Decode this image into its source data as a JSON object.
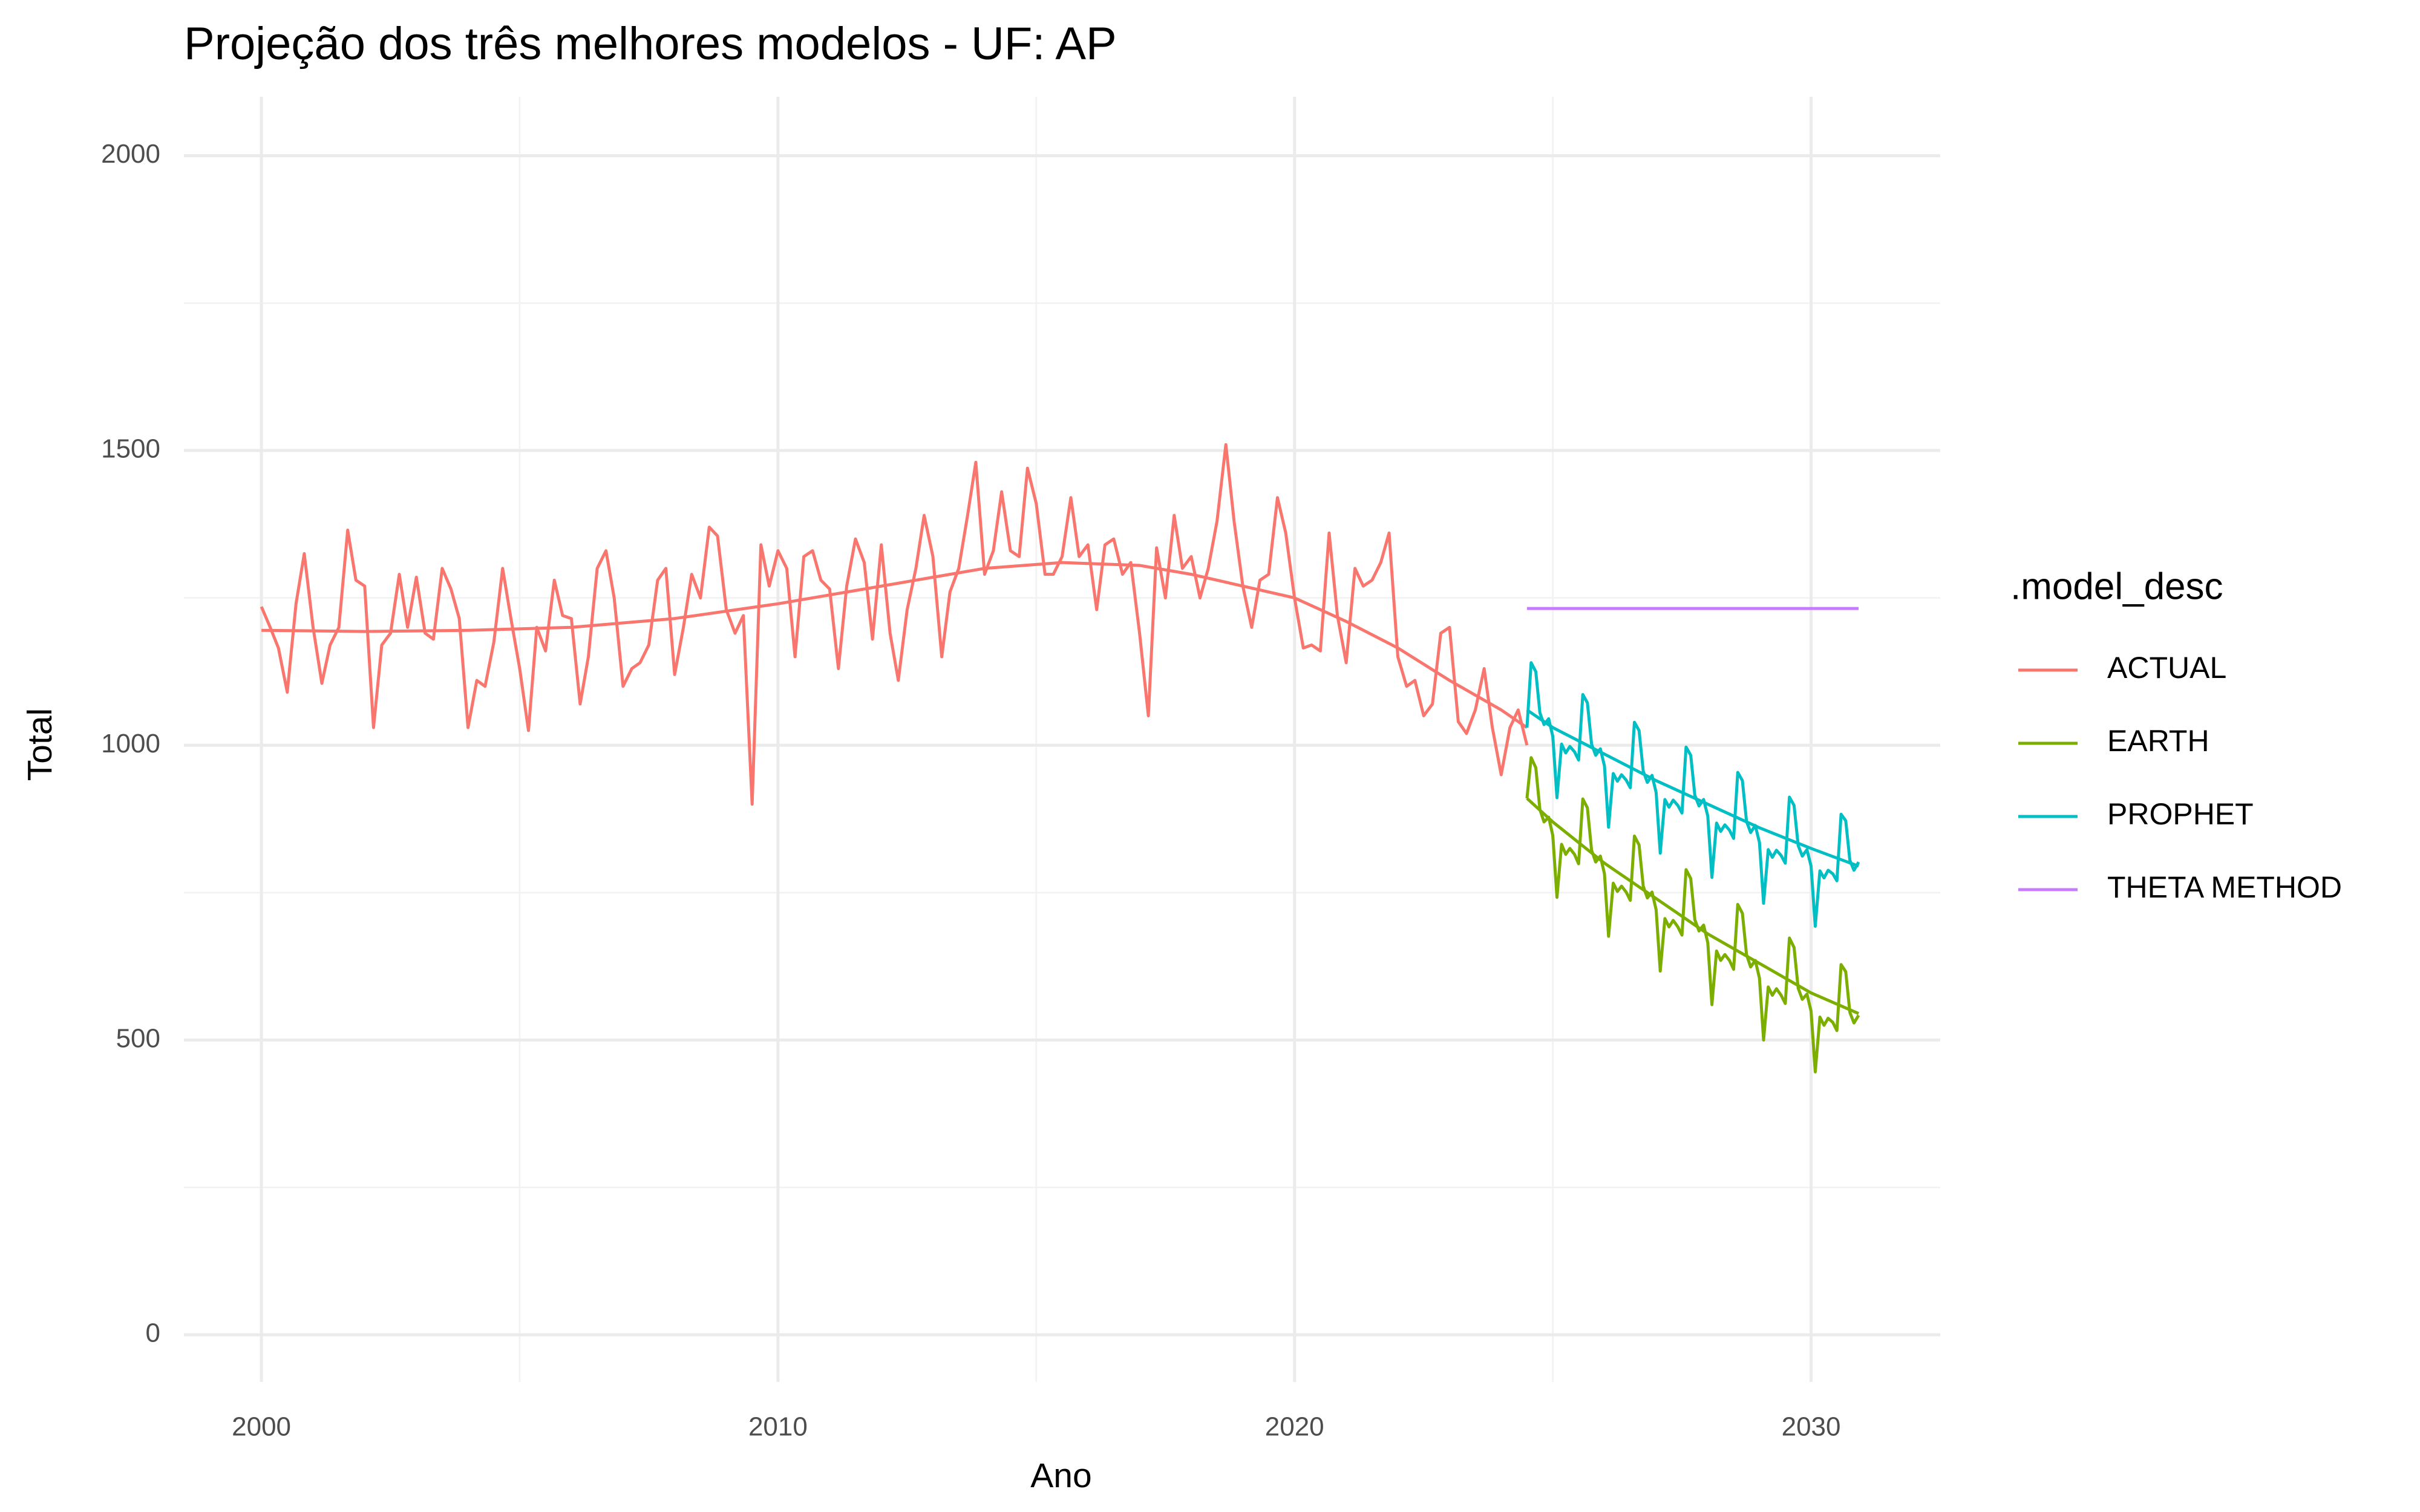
{
  "chart_data": {
    "type": "line",
    "title": "Projeção dos três melhores modelos - UF: AP",
    "xlabel": "Ano",
    "ylabel": "Total",
    "legend_title": ".model_desc",
    "legend": "right",
    "grid": true,
    "xlim": [
      1998.5,
      2032.5
    ],
    "ylim": [
      -80,
      2100
    ],
    "xticks": [
      2000,
      2010,
      2020,
      2030
    ],
    "yticks": [
      0,
      500,
      1000,
      1500,
      2000
    ],
    "xminor": [
      2005,
      2015,
      2025
    ],
    "yminor": [
      250,
      750,
      1250,
      1750
    ],
    "series": [
      {
        "name": "ACTUAL",
        "color": "#F8766D",
        "x": [
          2000,
          2000.17,
          2000.33,
          2000.5,
          2000.67,
          2000.83,
          2001,
          2001.17,
          2001.33,
          2001.5,
          2001.67,
          2001.83,
          2002,
          2002.17,
          2002.33,
          2002.5,
          2002.67,
          2002.83,
          2003,
          2003.17,
          2003.33,
          2003.5,
          2003.67,
          2003.83,
          2004,
          2004.17,
          2004.33,
          2004.5,
          2004.67,
          2004.83,
          2005,
          2005.17,
          2005.33,
          2005.5,
          2005.67,
          2005.83,
          2006,
          2006.17,
          2006.33,
          2006.5,
          2006.67,
          2006.83,
          2007,
          2007.17,
          2007.33,
          2007.5,
          2007.67,
          2007.83,
          2008,
          2008.17,
          2008.33,
          2008.5,
          2008.67,
          2008.83,
          2009,
          2009.17,
          2009.33,
          2009.5,
          2009.67,
          2009.83,
          2010,
          2010.17,
          2010.33,
          2010.5,
          2010.67,
          2010.83,
          2011,
          2011.17,
          2011.33,
          2011.5,
          2011.67,
          2011.83,
          2012,
          2012.17,
          2012.33,
          2012.5,
          2012.67,
          2012.83,
          2013,
          2013.17,
          2013.33,
          2013.5,
          2013.67,
          2013.83,
          2014,
          2014.17,
          2014.33,
          2014.5,
          2014.67,
          2014.83,
          2015,
          2015.17,
          2015.33,
          2015.5,
          2015.67,
          2015.83,
          2016,
          2016.17,
          2016.33,
          2016.5,
          2016.67,
          2016.83,
          2017,
          2017.17,
          2017.33,
          2017.5,
          2017.67,
          2017.83,
          2018,
          2018.17,
          2018.33,
          2018.5,
          2018.67,
          2018.83,
          2019,
          2019.17,
          2019.33,
          2019.5,
          2019.67,
          2019.83,
          2020,
          2020.17,
          2020.33,
          2020.5,
          2020.67,
          2020.83,
          2021,
          2021.17,
          2021.33,
          2021.5,
          2021.67,
          2021.83,
          2022,
          2022.17,
          2022.33,
          2022.5,
          2022.67,
          2022.83,
          2023,
          2023.17,
          2023.33,
          2023.5,
          2023.67,
          2023.83,
          2024,
          2024.17,
          2024.33,
          2024.5
        ],
        "values": [
          1235,
          1200,
          1165,
          1090,
          1240,
          1325,
          1200,
          1105,
          1170,
          1200,
          1365,
          1280,
          1270,
          1030,
          1170,
          1190,
          1290,
          1200,
          1285,
          1190,
          1180,
          1300,
          1265,
          1215,
          1030,
          1110,
          1100,
          1175,
          1300,
          1215,
          1130,
          1025,
          1200,
          1160,
          1280,
          1220,
          1215,
          1070,
          1150,
          1300,
          1330,
          1250,
          1100,
          1130,
          1140,
          1170,
          1280,
          1300,
          1120,
          1200,
          1290,
          1250,
          1370,
          1355,
          1230,
          1190,
          1220,
          900,
          1340,
          1270,
          1330,
          1300,
          1150,
          1320,
          1330,
          1280,
          1265,
          1130,
          1270,
          1350,
          1310,
          1180,
          1340,
          1190,
          1110,
          1230,
          1300,
          1390,
          1320,
          1150,
          1260,
          1300,
          1390,
          1480,
          1290,
          1330,
          1430,
          1330,
          1320,
          1470,
          1410,
          1290,
          1290,
          1320,
          1420,
          1320,
          1340,
          1230,
          1340,
          1350,
          1290,
          1310,
          1190,
          1050,
          1335,
          1250,
          1390,
          1300,
          1320,
          1250,
          1300,
          1380,
          1510,
          1380,
          1270,
          1200,
          1280,
          1290,
          1420,
          1360,
          1250,
          1165,
          1170,
          1160,
          1360,
          1220,
          1140,
          1300,
          1270,
          1280,
          1310,
          1360,
          1150,
          1100,
          1110,
          1050,
          1070,
          1190,
          1200,
          1040,
          1020,
          1060,
          1130,
          1030,
          950,
          1030,
          1060,
          1000
        ],
        "trend_x": [
          2000,
          2002,
          2004,
          2006,
          2008,
          2010,
          2012,
          2014,
          2015.5,
          2017,
          2018,
          2019,
          2020,
          2021,
          2022,
          2023,
          2024,
          2024.5
        ],
        "trend": [
          1195,
          1193,
          1195,
          1200,
          1215,
          1240,
          1270,
          1300,
          1310,
          1305,
          1290,
          1270,
          1250,
          1210,
          1165,
          1110,
          1060,
          1030
        ]
      },
      {
        "name": "EARTH",
        "color": "#7CAE00",
        "x": [
          2024.5,
          2024.58,
          2024.67,
          2024.75,
          2024.83,
          2024.92,
          2025,
          2025.08,
          2025.17,
          2025.25,
          2025.33,
          2025.42,
          2025.5,
          2025.58,
          2025.67,
          2025.75,
          2025.83,
          2025.92,
          2026,
          2026.08,
          2026.17,
          2026.25,
          2026.33,
          2026.42,
          2026.5,
          2026.58,
          2026.67,
          2026.75,
          2026.83,
          2026.92,
          2027,
          2027.08,
          2027.17,
          2027.25,
          2027.33,
          2027.42,
          2027.5,
          2027.58,
          2027.67,
          2027.75,
          2027.83,
          2027.92,
          2028,
          2028.08,
          2028.17,
          2028.25,
          2028.33,
          2028.42,
          2028.5,
          2028.58,
          2028.67,
          2028.75,
          2028.83,
          2028.92,
          2029,
          2029.08,
          2029.17,
          2029.25,
          2029.33,
          2029.42,
          2029.5,
          2029.58,
          2029.67,
          2029.75,
          2029.83,
          2029.92,
          2030,
          2030.08,
          2030.17,
          2030.25,
          2030.33,
          2030.42,
          2030.5,
          2030.58,
          2030.67,
          2030.75,
          2030.83,
          2030.92
        ],
        "values": [
          910,
          979,
          962,
          891,
          870,
          878,
          847,
          742,
          832,
          815,
          825,
          815,
          799,
          909,
          894,
          822,
          802,
          812,
          782,
          676,
          766,
          752,
          761,
          751,
          737,
          846,
          831,
          761,
          741,
          751,
          721,
          617,
          706,
          692,
          703,
          692,
          678,
          789,
          774,
          704,
          685,
          695,
          665,
          560,
          651,
          635,
          645,
          635,
          620,
          730,
          715,
          645,
          624,
          635,
          605,
          500,
          590,
          576,
          587,
          576,
          562,
          673,
          657,
          588,
          569,
          578,
          549,
          446,
          539,
          525,
          537,
          530,
          516,
          628,
          616,
          547,
          529,
          542
        ],
        "trend_x": [
          2024.5,
          2025,
          2026,
          2027,
          2028,
          2029,
          2030,
          2030.92
        ],
        "trend": [
          910,
          870,
          800,
          740,
          680,
          630,
          580,
          545
        ]
      },
      {
        "name": "PROPHET",
        "color": "#00BFC4",
        "x": [
          2024.5,
          2024.58,
          2024.67,
          2024.75,
          2024.83,
          2024.92,
          2025,
          2025.08,
          2025.17,
          2025.25,
          2025.33,
          2025.42,
          2025.5,
          2025.58,
          2025.67,
          2025.75,
          2025.83,
          2025.92,
          2026,
          2026.08,
          2026.17,
          2026.25,
          2026.33,
          2026.42,
          2026.5,
          2026.58,
          2026.67,
          2026.75,
          2026.83,
          2026.92,
          2027,
          2027.08,
          2027.17,
          2027.25,
          2027.33,
          2027.42,
          2027.5,
          2027.58,
          2027.67,
          2027.75,
          2027.83,
          2027.92,
          2028,
          2028.08,
          2028.17,
          2028.25,
          2028.33,
          2028.42,
          2028.5,
          2028.58,
          2028.67,
          2028.75,
          2028.83,
          2028.92,
          2029,
          2029.08,
          2029.17,
          2029.25,
          2029.33,
          2029.42,
          2029.5,
          2029.58,
          2029.67,
          2029.75,
          2029.83,
          2029.92,
          2030,
          2030.08,
          2030.17,
          2030.25,
          2030.33,
          2030.42,
          2030.5,
          2030.58,
          2030.67,
          2030.75,
          2030.83,
          2030.92
        ],
        "values": [
          1030,
          1140,
          1125,
          1055,
          1035,
          1045,
          1015,
          911,
          1002,
          987,
          998,
          989,
          975,
          1086,
          1072,
          1002,
          983,
          994,
          965,
          861,
          952,
          939,
          950,
          941,
          928,
          1039,
          1025,
          956,
          937,
          949,
          920,
          817,
          908,
          895,
          907,
          898,
          885,
          997,
          983,
          915,
          897,
          908,
          880,
          776,
          868,
          854,
          865,
          856,
          842,
          954,
          940,
          871,
          852,
          864,
          835,
          732,
          823,
          810,
          822,
          813,
          800,
          912,
          898,
          830,
          812,
          823,
          795,
          693,
          787,
          775,
          788,
          782,
          770,
          883,
          872,
          805,
          788,
          802
        ],
        "trend_x": [
          2024.5,
          2025,
          2026,
          2027,
          2028,
          2029,
          2030,
          2030.92
        ],
        "trend": [
          1060,
          1030,
          985,
          940,
          900,
          860,
          825,
          795
        ]
      },
      {
        "name": "THETA METHOD",
        "color": "#C77CFF",
        "x": [
          2024.5,
          2030.92
        ],
        "values": [
          1232,
          1232
        ]
      }
    ]
  }
}
